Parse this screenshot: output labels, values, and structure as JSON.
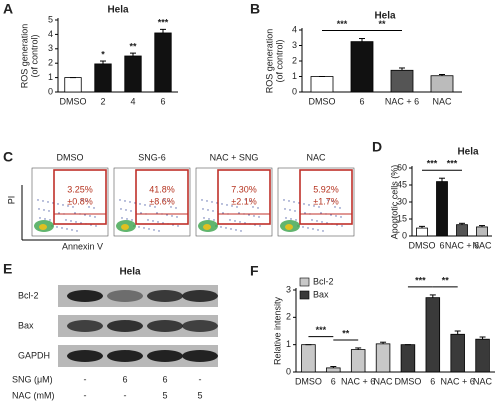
{
  "chart_data": [
    {
      "type": "bar",
      "panel": "A",
      "title": "Hela",
      "y_label": [
        "ROS generation",
        "(of control)"
      ],
      "categories": [
        "DMSO",
        "2",
        "4",
        "6"
      ],
      "values": [
        1,
        1.95,
        2.5,
        4.1
      ],
      "errors": [
        0,
        0.2,
        0.2,
        0.25
      ],
      "colors": [
        "#ffffff",
        "#111111",
        "#111111",
        "#111111"
      ],
      "ylim": [
        0,
        5
      ],
      "yticks": [
        0,
        1,
        2,
        3,
        4,
        5
      ],
      "significance": [
        null,
        "*",
        "**",
        "***"
      ]
    },
    {
      "type": "bar",
      "panel": "B",
      "title": "Hela",
      "y_label": [
        "ROS generation",
        "(of control)"
      ],
      "categories": [
        "DMSO",
        "6",
        "NAC + 6",
        "NAC"
      ],
      "values": [
        1,
        3.25,
        1.4,
        1.05
      ],
      "errors": [
        0,
        0.2,
        0.15,
        0.08
      ],
      "colors": [
        "#ffffff",
        "#111111",
        "#555555",
        "#bbbbbb"
      ],
      "ylim": [
        0,
        4
      ],
      "yticks": [
        0,
        1,
        2,
        3,
        4
      ],
      "brackets": [
        "***",
        "**"
      ]
    },
    {
      "type": "bar",
      "panel": "D",
      "title": "Hela",
      "y_label": [
        "Apoptotic cells (%)"
      ],
      "categories": [
        "DMSO",
        "6",
        "NAC + 6",
        "NAC"
      ],
      "values": [
        7,
        48,
        10,
        8
      ],
      "errors": [
        1.5,
        3,
        1.2,
        1.2
      ],
      "colors": [
        "#ffffff",
        "#111111",
        "#555555",
        "#bbbbbb"
      ],
      "ylim": [
        0,
        60
      ],
      "yticks": [
        0,
        15,
        30,
        45,
        60
      ],
      "brackets": [
        "***",
        "***"
      ]
    },
    {
      "type": "bar",
      "panel": "F",
      "y_label": [
        "Relative intensity"
      ],
      "categories": [
        "DMSO",
        "6",
        "NAC + 6",
        "NAC",
        "DMSO",
        "6",
        "NAC + 6",
        "NAC"
      ],
      "series": [
        {
          "name": "Bcl-2",
          "color": "#c8c8c8",
          "values": [
            1,
            0.15,
            0.82,
            1.03,
            null,
            null,
            null,
            null
          ],
          "errors": [
            0,
            0.05,
            0.06,
            0.06,
            null,
            null,
            null,
            null
          ]
        },
        {
          "name": "Bax",
          "color": "#3a3a3a",
          "values": [
            null,
            null,
            null,
            null,
            1,
            2.72,
            1.38,
            1.2
          ],
          "errors": [
            null,
            null,
            null,
            null,
            0,
            0.1,
            0.12,
            0.08
          ]
        }
      ],
      "ylim": [
        0,
        3
      ],
      "yticks": [
        0,
        1,
        2,
        3
      ],
      "legend": "upper left",
      "brackets": [
        "***",
        "**",
        "***",
        "**"
      ]
    }
  ],
  "flow": {
    "panel": "C",
    "y_label": "PI",
    "x_label": "Annexin V",
    "plots": [
      {
        "title": "DMSO",
        "value_labels": [
          "3.25%",
          "±0.8%"
        ]
      },
      {
        "title": "SNG-6",
        "value_labels": [
          "41.8%",
          "±8.6%"
        ]
      },
      {
        "title": "NAC + SNG",
        "value_labels": [
          "7.30%",
          "±2.1%"
        ]
      },
      {
        "title": "NAC",
        "value_labels": [
          "5.92%",
          "±1.7%"
        ]
      }
    ]
  },
  "blot": {
    "panel": "E",
    "title": "Hela",
    "proteins": [
      "Bcl-2",
      "Bax",
      "GAPDH"
    ],
    "conditions": [
      {
        "label": "SNG (μM)",
        "values": [
          "-",
          "6",
          "6",
          "-"
        ]
      },
      {
        "label": "NAC (mM)",
        "values": [
          "-",
          "-",
          "5",
          "5"
        ]
      }
    ]
  }
}
